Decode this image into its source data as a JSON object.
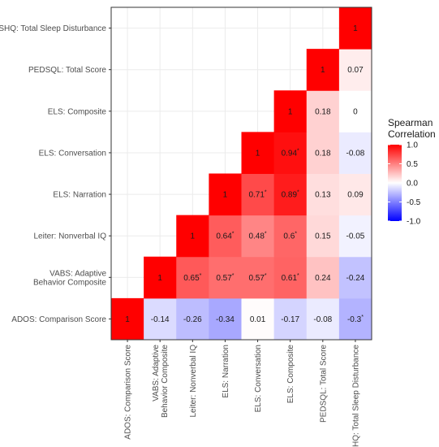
{
  "chart_data": {
    "type": "heatmap",
    "title": "",
    "xlabel": "",
    "ylabel": "",
    "variables": [
      [
        "ADOS: Comparison Score"
      ],
      [
        "VABS: Adaptive",
        "Behavior Composite"
      ],
      [
        "Leiter: Nonverbal IQ"
      ],
      [
        "ELS: Narration"
      ],
      [
        "ELS: Conversation"
      ],
      [
        "ELS: Composite"
      ],
      [
        "PEDSQL: Total Score"
      ],
      [
        "CSHQ: Total Sleep Disturbance"
      ]
    ],
    "cells": [
      {
        "x": 0,
        "y": 0,
        "value": 1,
        "label": "1",
        "sig": false
      },
      {
        "x": 1,
        "y": 0,
        "value": -0.14,
        "label": "-0.14",
        "sig": false
      },
      {
        "x": 2,
        "y": 0,
        "value": -0.26,
        "label": "-0.26",
        "sig": false
      },
      {
        "x": 3,
        "y": 0,
        "value": -0.34,
        "label": "-0.34",
        "sig": false
      },
      {
        "x": 4,
        "y": 0,
        "value": 0.01,
        "label": "0.01",
        "sig": false
      },
      {
        "x": 5,
        "y": 0,
        "value": -0.17,
        "label": "-0.17",
        "sig": false
      },
      {
        "x": 6,
        "y": 0,
        "value": -0.08,
        "label": "-0.08",
        "sig": false
      },
      {
        "x": 7,
        "y": 0,
        "value": -0.3,
        "label": "-0.3",
        "sig": true
      },
      {
        "x": 1,
        "y": 1,
        "value": 1,
        "label": "1",
        "sig": false
      },
      {
        "x": 2,
        "y": 1,
        "value": 0.65,
        "label": "0.65",
        "sig": true
      },
      {
        "x": 3,
        "y": 1,
        "value": 0.57,
        "label": "0.57",
        "sig": true
      },
      {
        "x": 4,
        "y": 1,
        "value": 0.57,
        "label": "0.57",
        "sig": true
      },
      {
        "x": 5,
        "y": 1,
        "value": 0.61,
        "label": "0.61",
        "sig": true
      },
      {
        "x": 6,
        "y": 1,
        "value": 0.24,
        "label": "0.24",
        "sig": false
      },
      {
        "x": 7,
        "y": 1,
        "value": -0.24,
        "label": "-0.24",
        "sig": false
      },
      {
        "x": 2,
        "y": 2,
        "value": 1,
        "label": "1",
        "sig": false
      },
      {
        "x": 3,
        "y": 2,
        "value": 0.64,
        "label": "0.64",
        "sig": true
      },
      {
        "x": 4,
        "y": 2,
        "value": 0.48,
        "label": "0.48",
        "sig": true
      },
      {
        "x": 5,
        "y": 2,
        "value": 0.6,
        "label": "0.6",
        "sig": true
      },
      {
        "x": 6,
        "y": 2,
        "value": 0.15,
        "label": "0.15",
        "sig": false
      },
      {
        "x": 7,
        "y": 2,
        "value": -0.05,
        "label": "-0.05",
        "sig": false
      },
      {
        "x": 3,
        "y": 3,
        "value": 1,
        "label": "1",
        "sig": false
      },
      {
        "x": 4,
        "y": 3,
        "value": 0.71,
        "label": "0.71",
        "sig": true
      },
      {
        "x": 5,
        "y": 3,
        "value": 0.89,
        "label": "0.89",
        "sig": true
      },
      {
        "x": 6,
        "y": 3,
        "value": 0.13,
        "label": "0.13",
        "sig": false
      },
      {
        "x": 7,
        "y": 3,
        "value": 0.09,
        "label": "0.09",
        "sig": false
      },
      {
        "x": 4,
        "y": 4,
        "value": 1,
        "label": "1",
        "sig": false
      },
      {
        "x": 5,
        "y": 4,
        "value": 0.94,
        "label": "0.94",
        "sig": true
      },
      {
        "x": 6,
        "y": 4,
        "value": 0.18,
        "label": "0.18",
        "sig": false
      },
      {
        "x": 7,
        "y": 4,
        "value": -0.08,
        "label": "-0.08",
        "sig": false
      },
      {
        "x": 5,
        "y": 5,
        "value": 1,
        "label": "1",
        "sig": false
      },
      {
        "x": 6,
        "y": 5,
        "value": 0.18,
        "label": "0.18",
        "sig": false
      },
      {
        "x": 7,
        "y": 5,
        "value": 0,
        "label": "0",
        "sig": false
      },
      {
        "x": 6,
        "y": 6,
        "value": 1,
        "label": "1",
        "sig": false
      },
      {
        "x": 7,
        "y": 6,
        "value": 0.07,
        "label": "0.07",
        "sig": false
      },
      {
        "x": 7,
        "y": 7,
        "value": 1,
        "label": "1",
        "sig": false
      }
    ],
    "significance_marker": "*",
    "color_scale": {
      "low": "#0000FF",
      "mid": "#FFFFFF",
      "high": "#FF0000",
      "domain": [
        -1,
        1
      ]
    },
    "legend": {
      "title": [
        "Spearman",
        "Correlation"
      ],
      "ticks": [
        "1.0",
        "0.5",
        "0.0",
        "-0.5",
        "-1.0"
      ],
      "tick_values": [
        1,
        0.5,
        0,
        -0.5,
        -1
      ],
      "placement": "right"
    },
    "grid": true
  },
  "colors": {
    "panel_border": "#333333",
    "grid": "#ebebeb",
    "tick_text": "#4d4d4d"
  }
}
